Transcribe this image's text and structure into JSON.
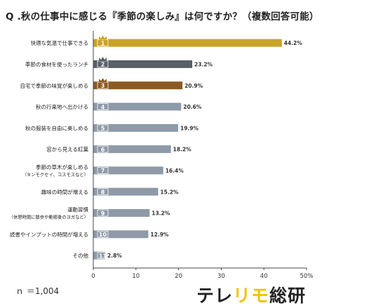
{
  "title": "Q .秋の仕事中に感じる『季節の楽しみ』は何ですか？（複数回答可能）",
  "sample": "ｎ ＝1,004",
  "brand": {
    "part1": "テレ",
    "part2": "リモ",
    "part3": "総研"
  },
  "colors": {
    "gold": "#c9a227",
    "silver": "#596068",
    "bronze": "#8b5a22",
    "default": "#8e9aa8",
    "axis": "#444444",
    "grid": "#dddddd"
  },
  "chart_data": {
    "type": "bar",
    "orientation": "horizontal",
    "categories": [
      "快適な気温で仕事できる",
      "季節の食材を使ったランチ",
      "自宅で季節の味覚が楽しめる",
      "秋の行楽地へ出かける",
      "秋の服装を自由に楽しめる",
      "窓から見える紅葉",
      "季節の草木が楽しめる（キンモクセイ、コスモスなど）",
      "趣味の時間が増える",
      "運動習慣（休憩時間に散歩や動務後のヨガなど）",
      "読書やインプットの時間が増える",
      "その他"
    ],
    "category_lines": [
      [
        "快適な気温で仕事できる"
      ],
      [
        "季節の食材を使ったランチ"
      ],
      [
        "自宅で季節の味覚が楽しめる"
      ],
      [
        "秋の行楽地へ出かける"
      ],
      [
        "秋の服装を自由に楽しめる"
      ],
      [
        "窓から見える紅葉"
      ],
      [
        "季節の草木が楽しめる",
        "（キンモクセイ、コスモスなど）"
      ],
      [
        "趣味の時間が増える"
      ],
      [
        "運動習慣",
        "（休憩時間に散歩や動務後のヨガなど）"
      ],
      [
        "読書やインプットの時間が増える"
      ],
      [
        "その他"
      ]
    ],
    "values": [
      44.2,
      23.2,
      20.9,
      20.6,
      19.9,
      18.2,
      16.4,
      15.2,
      13.2,
      12.9,
      2.8
    ],
    "value_labels": [
      "44.2%",
      "23.2%",
      "20.9%",
      "20.6%",
      "19.9%",
      "18.2%",
      "16.4%",
      "15.2%",
      "13.2%",
      "12.9%",
      "2.8%"
    ],
    "ranks": [
      "1",
      "2",
      "3",
      "4",
      "5",
      "6",
      "7",
      "8",
      "9",
      "10",
      "11"
    ],
    "xlim": [
      0,
      50
    ],
    "xticks": [
      0,
      10,
      20,
      30,
      40,
      50
    ],
    "xtick_labels": [
      "0",
      "10",
      "20",
      "30",
      "40",
      "50%"
    ]
  }
}
